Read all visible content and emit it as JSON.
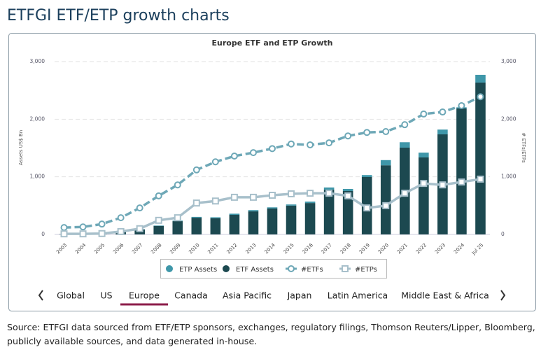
{
  "page_title": "ETFGI ETF/ETP growth charts",
  "tabs": [
    "Global",
    "US",
    "Europe",
    "Canada",
    "Asia Pacific",
    "Japan",
    "Latin America",
    "Middle East & Africa"
  ],
  "active_tab": 2,
  "source": "Source: ETFGI data sourced from ETF/ETP sponsors, exchanges, regulatory filings, Thomson Reuters/Lipper, Bloomberg, publicly available sources, and data generated in-house.",
  "chart_data": {
    "type": "bar",
    "title": "Europe ETF and ETP Growth",
    "stacked": true,
    "y_label": "Assets US$ Bn",
    "y2_label": "# ETFs/ETPs",
    "categories": [
      "2003",
      "2004",
      "2005",
      "2006",
      "2007",
      "2008",
      "2009",
      "2010",
      "2011",
      "2012",
      "2013",
      "2014",
      "2015",
      "2016",
      "2017",
      "2018",
      "2019",
      "2020",
      "2021",
      "2022",
      "2023",
      "2024",
      "Jul 25"
    ],
    "ylim": [
      0,
      3000
    ],
    "yticks": [
      0,
      {
        "value": 1000,
        "label": "1,000"
      },
      {
        "value": 2000,
        "label": "2,000"
      },
      {
        "value": 3000,
        "label": "3,000"
      }
    ],
    "y2lim": [
      0,
      3000
    ],
    "y2ticks": [
      0,
      {
        "value": 1000,
        "label": "1,000"
      },
      {
        "value": 2000,
        "label": "2,000"
      },
      {
        "value": 3000,
        "label": "3,000"
      }
    ],
    "grid": true,
    "series": [
      {
        "name": "ETP Assets",
        "type": "bar",
        "color": "#3f97a9",
        "values": [
          1,
          1,
          2,
          3,
          5,
          8,
          10,
          15,
          18,
          20,
          22,
          20,
          20,
          25,
          37,
          37,
          34,
          90,
          94,
          84,
          83,
          20,
          134
        ]
      },
      {
        "name": "ETF Assets",
        "type": "bar",
        "color": "#1c4950",
        "values": [
          5,
          10,
          15,
          40,
          85,
          146,
          230,
          290,
          280,
          340,
          400,
          450,
          500,
          545,
          778,
          753,
          996,
          1200,
          1506,
          1336,
          1737,
          2186,
          2636
        ]
      },
      {
        "name": "#ETFs",
        "type": "line",
        "axis": "y2",
        "color": "#6ea8b7",
        "dashed": true,
        "marker": "circle",
        "values": [
          120,
          130,
          180,
          290,
          460,
          670,
          860,
          1120,
          1260,
          1360,
          1420,
          1490,
          1570,
          1555,
          1590,
          1710,
          1770,
          1785,
          1905,
          2090,
          2125,
          2235,
          2390
        ]
      },
      {
        "name": "#ETPs",
        "type": "line",
        "axis": "y2",
        "color": "#a8c0cb",
        "dashed": false,
        "marker": "square",
        "values": [
          10,
          10,
          15,
          50,
          100,
          245,
          290,
          545,
          580,
          645,
          645,
          680,
          705,
          715,
          715,
          670,
          460,
          500,
          715,
          885,
          860,
          910,
          960
        ]
      }
    ]
  }
}
